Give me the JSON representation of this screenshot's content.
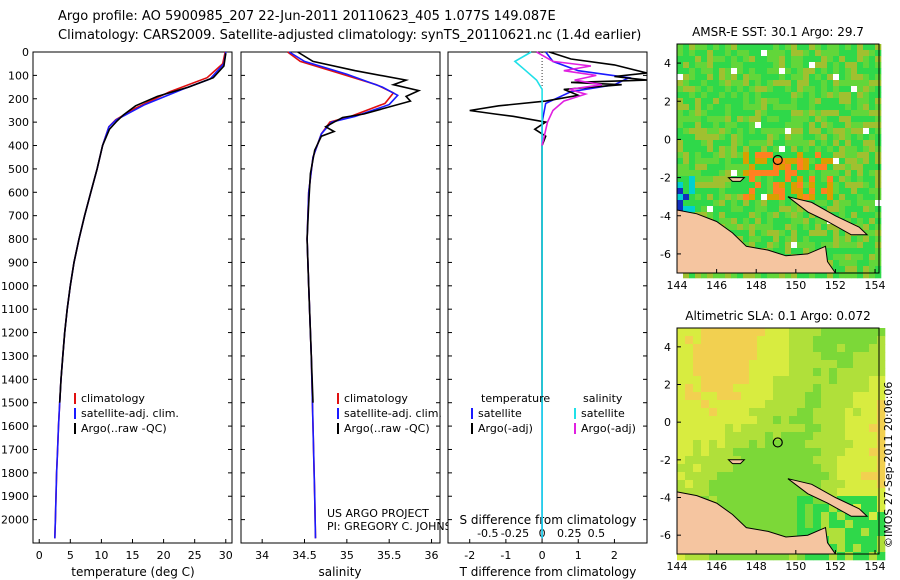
{
  "header": {
    "line1": "Argo profile: AO 5900985_207 22-Jun-2011 20110623_405 1.077S 149.087E",
    "line2": "Climatology: CARS2009. Satellite-adjusted climatology: synTS_20110621.nc (1.4d earlier)"
  },
  "credits": {
    "project": "US ARGO PROJECT",
    "pi": "PI: GREGORY C. JOHNSON"
  },
  "stamp": "©IMOS 27-Sep-2011 20:06:06",
  "colors": {
    "climatology": "#e01010",
    "satellite": "#1a1aff",
    "argo": "#000000",
    "salinity_sat": "#20e0e8",
    "salinity_argo": "#e020e0"
  },
  "chart_data": [
    {
      "id": "temperature",
      "type": "line",
      "xlabel": "temperature (deg C)",
      "ylim": [
        2100,
        0
      ],
      "xlim": [
        -1,
        31
      ],
      "xticks": [
        0,
        5,
        10,
        15,
        20,
        25,
        30
      ],
      "yticks": [
        0,
        100,
        200,
        300,
        400,
        500,
        600,
        700,
        800,
        900,
        1000,
        1100,
        1200,
        1300,
        1400,
        1500,
        1600,
        1700,
        1800,
        1900,
        2000
      ],
      "legend": [
        "climatology",
        "satellite-adj. clim.",
        "Argo(..raw -QC)"
      ],
      "series": [
        {
          "name": "climatology",
          "color": "climatology",
          "points": [
            [
              29.9,
              0
            ],
            [
              29.5,
              50
            ],
            [
              27,
              110
            ],
            [
              21,
              170
            ],
            [
              15.5,
              240
            ],
            [
              12.3,
              290
            ],
            [
              11.2,
              320
            ],
            [
              10.2,
              400
            ],
            [
              9.3,
              500
            ],
            [
              8.3,
              600
            ],
            [
              7.3,
              700
            ],
            [
              6.4,
              800
            ],
            [
              5.6,
              900
            ],
            [
              5.0,
              1000
            ],
            [
              4.5,
              1100
            ],
            [
              4.1,
              1200
            ],
            [
              3.8,
              1300
            ],
            [
              3.5,
              1400
            ],
            [
              3.3,
              1500
            ],
            [
              3.1,
              1600
            ],
            [
              2.95,
              1700
            ],
            [
              2.8,
              1800
            ],
            [
              2.7,
              1900
            ],
            [
              2.6,
              2000
            ],
            [
              2.5,
              2080
            ]
          ]
        },
        {
          "name": "satellite-adj. clim.",
          "color": "satellite",
          "points": [
            [
              30.0,
              0
            ],
            [
              29.7,
              50
            ],
            [
              27.5,
              115
            ],
            [
              23,
              160
            ],
            [
              17,
              225
            ],
            [
              12.4,
              290
            ],
            [
              11.2,
              320
            ],
            [
              10.2,
              400
            ],
            [
              9.3,
              500
            ],
            [
              8.3,
              600
            ],
            [
              7.3,
              700
            ],
            [
              6.4,
              800
            ],
            [
              5.6,
              900
            ],
            [
              5.0,
              1000
            ],
            [
              4.5,
              1100
            ],
            [
              4.1,
              1200
            ],
            [
              3.8,
              1300
            ],
            [
              3.5,
              1400
            ],
            [
              3.3,
              1500
            ],
            [
              3.1,
              1600
            ],
            [
              2.95,
              1700
            ],
            [
              2.8,
              1800
            ],
            [
              2.7,
              1900
            ],
            [
              2.6,
              2000
            ],
            [
              2.5,
              2080
            ]
          ]
        },
        {
          "name": "Argo(..raw -QC)",
          "color": "argo",
          "points": [
            [
              30.0,
              5
            ],
            [
              29.7,
              60
            ],
            [
              28,
              110
            ],
            [
              24,
              150
            ],
            [
              19,
              190
            ],
            [
              15.5,
              230
            ],
            [
              13.5,
              270
            ],
            [
              12.5,
              295
            ],
            [
              11.3,
              330
            ],
            [
              10.2,
              400
            ],
            [
              9.3,
              500
            ],
            [
              8.3,
              600
            ],
            [
              7.3,
              700
            ],
            [
              6.4,
              800
            ],
            [
              5.6,
              900
            ],
            [
              5.0,
              1000
            ],
            [
              4.5,
              1100
            ],
            [
              4.1,
              1200
            ],
            [
              3.8,
              1300
            ],
            [
              3.5,
              1400
            ],
            [
              3.3,
              1500
            ]
          ]
        }
      ]
    },
    {
      "id": "salinity",
      "type": "line",
      "xlabel": "salinity",
      "ylim": [
        2100,
        0
      ],
      "xlim": [
        33.75,
        36.1
      ],
      "xticks": [
        34,
        34.5,
        35,
        35.5,
        36
      ],
      "xticklabels": [
        "34",
        "34.5",
        "35",
        "35.5",
        "36"
      ],
      "legend": [
        "climatology",
        "satellite-adj. clim.",
        "Argo(..raw -QC)"
      ],
      "series": [
        {
          "name": "climatology",
          "color": "climatology",
          "points": [
            [
              34.3,
              0
            ],
            [
              34.45,
              40
            ],
            [
              34.9,
              90
            ],
            [
              35.35,
              140
            ],
            [
              35.55,
              175
            ],
            [
              35.45,
              220
            ],
            [
              35.05,
              275
            ],
            [
              34.8,
              300
            ],
            [
              34.7,
              350
            ],
            [
              34.6,
              450
            ],
            [
              34.55,
              600
            ],
            [
              34.53,
              800
            ],
            [
              34.55,
              1000
            ],
            [
              34.58,
              1300
            ],
            [
              34.6,
              1600
            ],
            [
              34.62,
              1900
            ],
            [
              34.63,
              2080
            ]
          ]
        },
        {
          "name": "satellite-adj. clim.",
          "color": "satellite",
          "points": [
            [
              34.32,
              0
            ],
            [
              34.5,
              40
            ],
            [
              35.0,
              95
            ],
            [
              35.42,
              150
            ],
            [
              35.6,
              185
            ],
            [
              35.5,
              225
            ],
            [
              35.1,
              275
            ],
            [
              34.82,
              300
            ],
            [
              34.7,
              350
            ],
            [
              34.6,
              450
            ],
            [
              34.55,
              600
            ],
            [
              34.53,
              800
            ],
            [
              34.55,
              1000
            ],
            [
              34.58,
              1300
            ],
            [
              34.6,
              1600
            ],
            [
              34.62,
              1900
            ],
            [
              34.63,
              2080
            ]
          ]
        },
        {
          "name": "Argo(..raw -QC)",
          "color": "argo",
          "points": [
            [
              34.42,
              0
            ],
            [
              34.6,
              40
            ],
            [
              35.1,
              80
            ],
            [
              35.7,
              120
            ],
            [
              35.55,
              140
            ],
            [
              35.85,
              165
            ],
            [
              35.7,
              190
            ],
            [
              35.75,
              210
            ],
            [
              35.4,
              245
            ],
            [
              35.2,
              265
            ],
            [
              34.95,
              280
            ],
            [
              34.85,
              300
            ],
            [
              34.75,
              320
            ],
            [
              34.85,
              340
            ],
            [
              34.7,
              360
            ],
            [
              34.62,
              420
            ],
            [
              34.57,
              520
            ],
            [
              34.55,
              650
            ],
            [
              34.53,
              800
            ],
            [
              34.55,
              1000
            ],
            [
              34.58,
              1300
            ],
            [
              34.6,
              1500
            ]
          ]
        }
      ]
    },
    {
      "id": "differences",
      "type": "line",
      "xlabel_top": "S difference from climatology",
      "xlabel": "T difference from climatology",
      "ylim": [
        2100,
        0
      ],
      "xlim_T": [
        -2.6,
        2.9
      ],
      "xticks_T": [
        -2,
        -1,
        0,
        1,
        2
      ],
      "xticks_S": [
        -0.5,
        -0.25,
        0,
        0.25,
        0.5
      ],
      "xticklabels_S": [
        "-0.5",
        "-0.25",
        "0",
        "0.25",
        "0.5"
      ],
      "legend_temperature": {
        "heading": "temperature",
        "items": [
          "satellite",
          "Argo(-adj)"
        ]
      },
      "legend_salinity": {
        "heading": "salinity",
        "items": [
          "satellite",
          "Argo(-adj)"
        ]
      },
      "series": [
        {
          "name": "T satellite",
          "color": "satellite",
          "scale": "T",
          "points": [
            [
              0.1,
              0
            ],
            [
              0.3,
              40
            ],
            [
              1.0,
              80
            ],
            [
              2.4,
              110
            ],
            [
              2.0,
              140
            ],
            [
              0.8,
              170
            ],
            [
              0.1,
              220
            ],
            [
              0.0,
              300
            ],
            [
              0.0,
              2080
            ]
          ]
        },
        {
          "name": "T Argo(-adj)",
          "color": "argo",
          "scale": "T",
          "points": [
            [
              0.2,
              0
            ],
            [
              0.8,
              30
            ],
            [
              2.0,
              55
            ],
            [
              2.9,
              90
            ],
            [
              2.0,
              105
            ],
            [
              2.9,
              120
            ],
            [
              0.8,
              130
            ],
            [
              2.2,
              140
            ],
            [
              0.6,
              160
            ],
            [
              1.0,
              185
            ],
            [
              0.1,
              210
            ],
            [
              -1.2,
              230
            ],
            [
              -2.0,
              250
            ],
            [
              -1.3,
              265
            ],
            [
              -0.8,
              275
            ],
            [
              0.1,
              300
            ],
            [
              -0.2,
              330
            ],
            [
              0.1,
              360
            ],
            [
              0.0,
              400
            ],
            [
              0.0,
              1500
            ]
          ]
        },
        {
          "name": "S satellite",
          "color": "salinity_sat",
          "scale": "S",
          "points": [
            [
              -0.1,
              0
            ],
            [
              -0.25,
              40
            ],
            [
              -0.15,
              80
            ],
            [
              -0.05,
              120
            ],
            [
              0.0,
              160
            ],
            [
              0.0,
              250
            ],
            [
              0.0,
              2080
            ]
          ]
        },
        {
          "name": "S Argo(-adj)",
          "color": "salinity_argo",
          "scale": "S",
          "points": [
            [
              -0.05,
              0
            ],
            [
              0.1,
              40
            ],
            [
              0.45,
              60
            ],
            [
              0.2,
              80
            ],
            [
              0.5,
              100
            ],
            [
              0.3,
              120
            ],
            [
              0.55,
              140
            ],
            [
              0.25,
              160
            ],
            [
              0.4,
              180
            ],
            [
              0.2,
              210
            ],
            [
              0.1,
              250
            ],
            [
              0.05,
              300
            ],
            [
              0.0,
              400
            ]
          ]
        }
      ]
    },
    {
      "id": "sst_map",
      "type": "heatmap",
      "title": "AMSR-E SST: 30.1 Argo: 29.7",
      "xticks": [
        144,
        146,
        148,
        150,
        152,
        154
      ],
      "yticks": [
        4,
        2,
        0,
        -2,
        -4,
        -6
      ],
      "xlim": [
        144,
        154.2
      ],
      "ylim": [
        -7,
        5
      ],
      "argo_position": [
        149.087,
        -1.077
      ]
    },
    {
      "id": "sla_map",
      "type": "heatmap",
      "title": "Altimetric SLA: 0.1 Argo: 0.072",
      "xticks": [
        144,
        146,
        148,
        150,
        152,
        154
      ],
      "yticks": [
        4,
        2,
        0,
        -2,
        -4,
        -6
      ],
      "xlim": [
        144,
        154.2
      ],
      "ylim": [
        -7,
        5
      ],
      "argo_position": [
        149.087,
        -1.077
      ]
    }
  ]
}
